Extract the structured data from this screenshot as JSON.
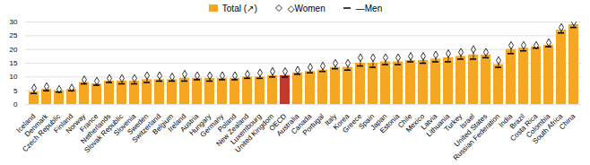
{
  "chart_data": {
    "type": "bar",
    "categories": [
      "Iceland",
      "Denmark",
      "Czech Republic",
      "Finland",
      "Norway",
      "France",
      "Netherlands",
      "Slovak Republic",
      "Slovenia",
      "Sweden",
      "Switzerland",
      "Belgium",
      "Ireland",
      "Austria",
      "Hungary",
      "Germany",
      "Poland",
      "New Zealand",
      "Luxembourg",
      "United Kingdom",
      "OECD",
      "Australia",
      "Canada",
      "Portugal",
      "Italy",
      "Korea",
      "Greece",
      "Spain",
      "Japan",
      "Estonia",
      "Chile",
      "Mexico",
      "Latvia",
      "Lithuania",
      "Turkey",
      "Israel",
      "United States",
      "Russian Federation",
      "India",
      "Brazil",
      "Costa Rica",
      "Colombia",
      "South Africa",
      "China"
    ],
    "series": [
      {
        "name": "Total (↗)",
        "type": "bar",
        "color": "#F5A623",
        "colors": [
          "#F5A623",
          "#F5A623",
          "#F5A623",
          "#F5A623",
          "#F5A623",
          "#F5A623",
          "#F5A623",
          "#F5A623",
          "#F5A623",
          "#F5A623",
          "#F5A623",
          "#F5A623",
          "#F5A623",
          "#F5A623",
          "#F5A623",
          "#F5A623",
          "#F5A623",
          "#F5A623",
          "#F5A623",
          "#F5A623",
          "#C0392B",
          "#F5A623",
          "#F5A623",
          "#F5A623",
          "#F5A623",
          "#F5A623",
          "#F5A623",
          "#F5A623",
          "#F5A623",
          "#F5A623",
          "#F5A623",
          "#F5A623",
          "#F5A623",
          "#F5A623",
          "#F5A623",
          "#F5A623",
          "#F5A623",
          "#F5A623",
          "#F5A623",
          "#F5A623",
          "#F5A623",
          "#F5A623",
          "#F5A623",
          "#F5A623"
        ],
        "values": [
          4.5,
          5.5,
          5.0,
          5.5,
          8.0,
          7.5,
          8.5,
          8.5,
          8.5,
          9.0,
          9.0,
          9.0,
          9.5,
          9.5,
          9.5,
          9.5,
          9.5,
          10.0,
          10.0,
          10.5,
          10.5,
          11.5,
          12.0,
          12.5,
          13.5,
          13.5,
          15.0,
          15.0,
          15.5,
          15.5,
          16.0,
          16.0,
          16.5,
          17.0,
          17.5,
          18.0,
          18.0,
          14.5,
          20.0,
          20.5,
          21.0,
          21.5,
          27.0,
          29.0
        ]
      },
      {
        "name": "◇Women",
        "type": "scatter",
        "marker": "diamond",
        "values": [
          6.0,
          6.5,
          5.5,
          6.0,
          9.0,
          8.5,
          9.5,
          9.5,
          9.5,
          10.5,
          10.5,
          10.0,
          11.0,
          10.5,
          10.5,
          10.5,
          10.5,
          11.0,
          11.5,
          12.0,
          12.0,
          12.5,
          13.5,
          14.0,
          15.0,
          15.0,
          17.0,
          17.0,
          17.0,
          17.0,
          17.5,
          17.5,
          18.0,
          18.5,
          19.0,
          20.0,
          19.0,
          16.0,
          21.5,
          21.5,
          21.5,
          22.5,
          28.0,
          30.0
        ]
      },
      {
        "name": "—Men",
        "type": "scatter",
        "marker": "dash",
        "values": [
          4.0,
          5.0,
          4.5,
          5.0,
          7.5,
          7.0,
          8.0,
          7.5,
          7.5,
          8.0,
          8.5,
          8.5,
          8.5,
          9.0,
          8.5,
          9.0,
          9.0,
          9.5,
          9.5,
          10.0,
          10.0,
          11.0,
          11.5,
          12.0,
          13.0,
          12.5,
          14.0,
          13.5,
          14.5,
          14.5,
          15.5,
          15.0,
          15.5,
          15.5,
          16.5,
          16.5,
          17.0,
          13.5,
          18.5,
          19.5,
          20.5,
          21.0,
          26.0,
          28.0
        ]
      }
    ],
    "ylim": [
      0,
      30
    ],
    "yticks": [
      0,
      5,
      10,
      15,
      20,
      25,
      30
    ],
    "grid": true,
    "legend": "top"
  }
}
